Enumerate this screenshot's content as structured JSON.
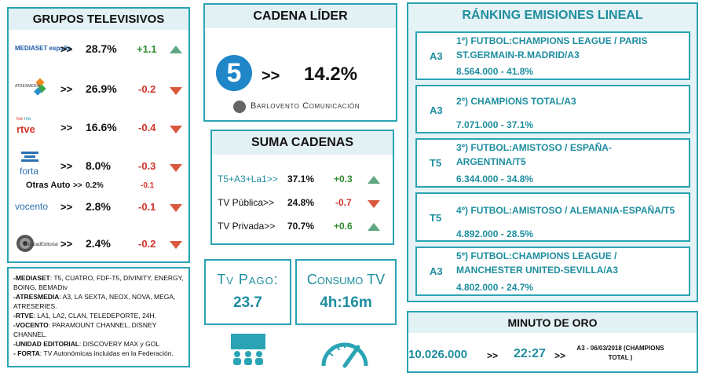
{
  "grupos": {
    "title": "GRUPOS TELEVISIVOS",
    "rows": [
      {
        "logo": "MEDIASET españa",
        "arrow": ">>",
        "share": "28.7%",
        "delta": "+1.1",
        "trend": "up"
      },
      {
        "logo": "ATRESMEDIA",
        "arrow": ">>",
        "share": "26.9%",
        "delta": "-0.2",
        "trend": "down"
      },
      {
        "logo": "rtve",
        "arrow": ">>",
        "share": "16.6%",
        "delta": "-0.4",
        "trend": "down"
      },
      {
        "logo": "forta",
        "arrow": ">>",
        "share": "8.0%",
        "delta": "-0.3",
        "trend": "down"
      },
      {
        "logo": "vocento",
        "arrow": ">>",
        "share": "2.8%",
        "delta": "-0.1",
        "trend": "down"
      },
      {
        "logo": "UnidadEditorial",
        "arrow": ">>",
        "share": "2.4%",
        "delta": "-0.2",
        "trend": "down"
      }
    ],
    "otras": {
      "label": "Otras Auto",
      "arrow": ">>",
      "share": "0.2%",
      "delta": "-0.1"
    }
  },
  "cadena_lider": {
    "title": "CADENA LÍDER",
    "logo": "5",
    "arrow": ">>",
    "share": "14.2%",
    "credit": "Barlovento Comunicación"
  },
  "suma": {
    "title": "SUMA CADENAS",
    "rows": [
      {
        "label": "T5+A3+La1>>",
        "share": "37.1%",
        "delta": "+0.3",
        "trend": "up"
      },
      {
        "label": "TV Pública>>",
        "share": "24.8%",
        "delta": "-0.7",
        "trend": "down"
      },
      {
        "label": "TV Privada>>",
        "share": "70.7%",
        "delta": "+0.6",
        "trend": "up"
      }
    ]
  },
  "notes": [
    {
      "bold": "-MEDIASET",
      "text": ": T5, CUATRO, FDF-T5, DIVINITY, ENERGY, BOING, BEMADtv"
    },
    {
      "bold": "-ATRESMEDIA",
      "text": ": A3, LA SEXTA, NEOX, NOVA, MEGA, ATRESERIES."
    },
    {
      "bold": "-RTVE",
      "text": ": LA1, LA2, CLAN, TELEDEPORTE, 24H."
    },
    {
      "bold": "-VOCENTO",
      "text": ": PARAMOUNT CHANNEL, DISNEY CHANNEL."
    },
    {
      "bold": "-UNIDAD EDITORIAL",
      "text": ": DISCOVERY MAX y GOL"
    },
    {
      "bold": "- FORTA",
      "text": ": TV Autonómicas incluidas en la Federación."
    }
  ],
  "tv_pago": {
    "label": "Tv Pago:",
    "value": "23.7",
    "icon": "audience-icon"
  },
  "consumo": {
    "label": "Consumo TV",
    "value": "4h:16m",
    "icon": "gauge-icon"
  },
  "ranking": {
    "title": "RÁNKING EMISIONES LINEAL",
    "items": [
      {
        "channel": "A3",
        "line1": "1º) FUTBOL:CHAMPIONS LEAGUE / PARIS",
        "line2": "ST.GERMAIN-R.MADRID/A3",
        "stats": "8.564.000 - 41.8%"
      },
      {
        "channel": "A3",
        "line1": "2º) CHAMPIONS TOTAL/A3",
        "line2": "",
        "stats": "7.071.000 - 37.1%"
      },
      {
        "channel": "T5",
        "line1": "3º) FUTBOL:AMISTOSO / ESPAÑA-",
        "line2": "ARGENTINA/T5",
        "stats": "6.344.000 - 34.8%"
      },
      {
        "channel": "T5",
        "line1": "4º) FUTBOL:AMISTOSO / ALEMANIA-ESPAÑA/T5",
        "line2": "",
        "stats": "4.892.000 - 28.5%"
      },
      {
        "channel": "A3",
        "line1": "5º) FUTBOL:CHAMPIONS LEAGUE /",
        "line2": "MANCHESTER UNITED-SEVILLA/A3",
        "stats": "4.802.000 - 24.7%"
      }
    ]
  },
  "minuto_oro": {
    "title": "MINUTO DE ORO",
    "audience": "10.026.000",
    "arrow1": ">>",
    "time": "22:27",
    "arrow2": ">>",
    "detail": "A3 - 06/03/2018 (CHAMPIONS TOTAL )"
  },
  "colors": {
    "accent": "#2aa4b4",
    "header_bg": "#e2f1f4",
    "up": "#5fa883",
    "down": "#d9573d",
    "teal_text": "#1e8e9f"
  }
}
